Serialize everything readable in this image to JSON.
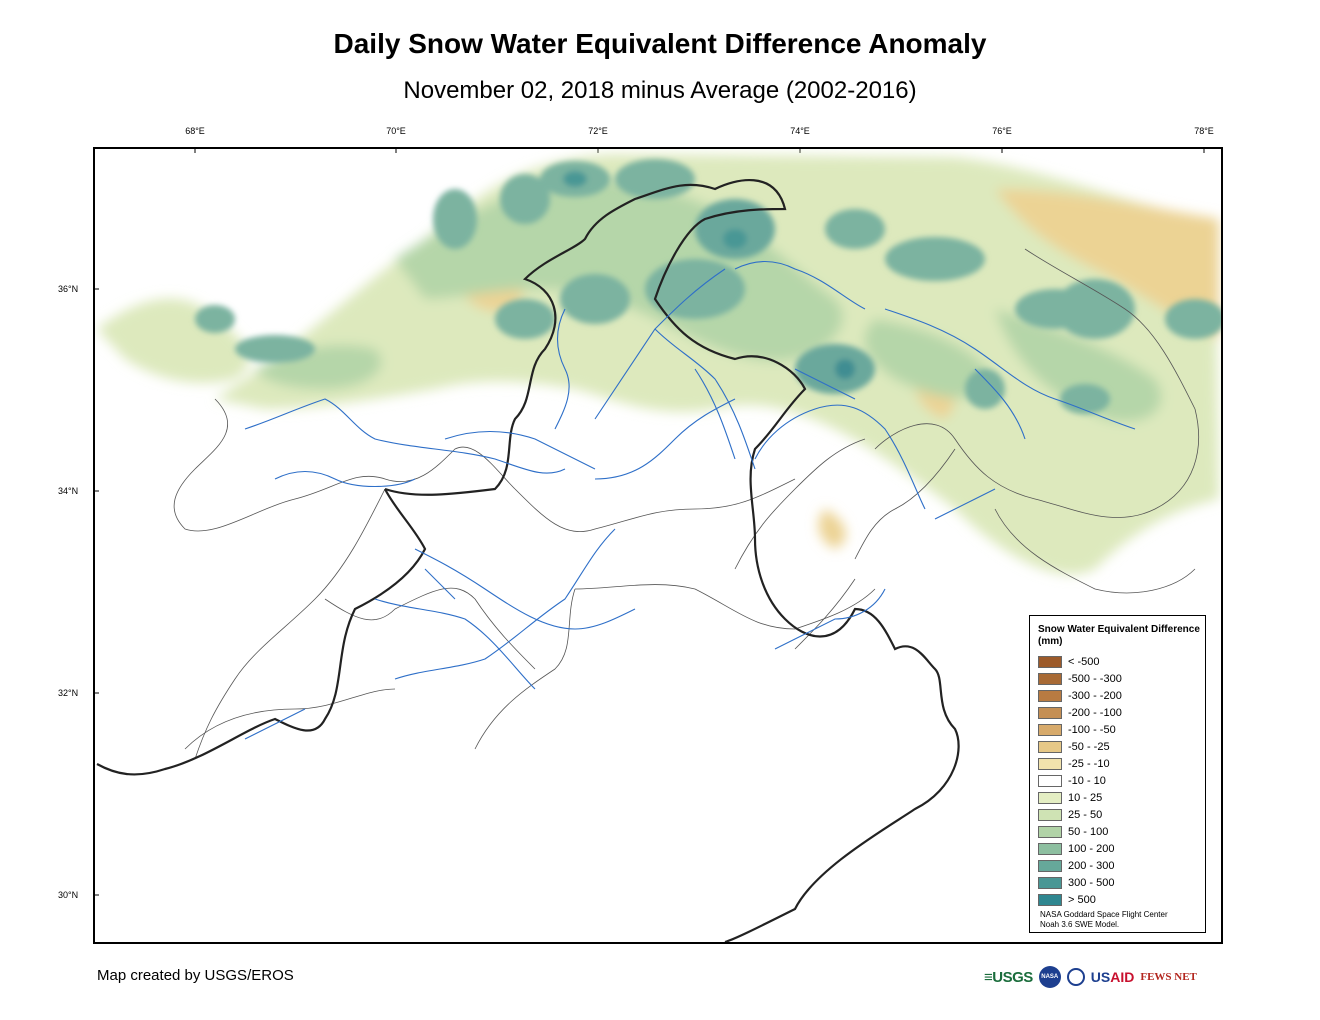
{
  "map": {
    "title": "Daily Snow Water Equivalent Difference Anomaly",
    "subtitle": "November 02, 2018 minus Average (2002-2016)",
    "lon_labels": [
      "68°E",
      "70°E",
      "72°E",
      "74°E",
      "76°E",
      "78°E"
    ],
    "lat_labels": [
      "36°N",
      "34°N",
      "32°N",
      "30°N"
    ]
  },
  "legend": {
    "title": "Snow Water Equivalent Difference (mm)",
    "items": [
      {
        "label": "< -500",
        "color": "#9c5a2a"
      },
      {
        "label": "-500 - -300",
        "color": "#a86a35"
      },
      {
        "label": "-300 - -200",
        "color": "#b87b42"
      },
      {
        "label": "-200 - -100",
        "color": "#c58f54"
      },
      {
        "label": "-100 - -50",
        "color": "#d7aa6b"
      },
      {
        "label": "-50 - -25",
        "color": "#e6c887"
      },
      {
        "label": "-25 - -10",
        "color": "#f2e3ad"
      },
      {
        "label": "-10 - 10",
        "color": "#ffffff"
      },
      {
        "label": "10 - 25",
        "color": "#e4eec3"
      },
      {
        "label": "25 - 50",
        "color": "#cfe3b4"
      },
      {
        "label": "50 - 100",
        "color": "#b1d3a7"
      },
      {
        "label": "100 - 200",
        "color": "#8dbfa0"
      },
      {
        "label": "200 - 300",
        "color": "#66a89a"
      },
      {
        "label": "300 - 500",
        "color": "#4a9795"
      },
      {
        "label": "> 500",
        "color": "#2f8790"
      }
    ],
    "credit_line1": "NASA Goddard Space Flight Center",
    "credit_line2": "Noah 3.6 SWE Model."
  },
  "footer": {
    "credit": "Map created by USGS/EROS",
    "logo_usgs": "≡USGS",
    "logo_nasa": "NASA",
    "logo_usaid_a": "US",
    "logo_usaid_b": "AID",
    "logo_fews": "FEWS NET"
  }
}
